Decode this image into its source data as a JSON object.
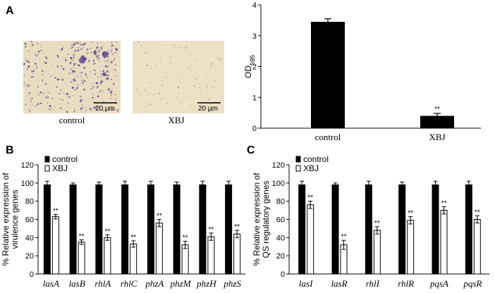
{
  "panel_letters": {
    "a": "A",
    "b": "B",
    "c": "C"
  },
  "micrographs": [
    {
      "label": "control",
      "scale": "20 μm",
      "bg": "#e9dcc0"
    },
    {
      "label": "XBJ",
      "scale": "20 μm",
      "bg": "#ece0c6"
    }
  ],
  "colors": {
    "control": "#000000",
    "xbj": "#ffffff",
    "stain": "#5b3f8c"
  },
  "chart_data": [
    {
      "type": "bar",
      "panel": "A",
      "categories": [
        "control",
        "XBJ"
      ],
      "values": [
        3.45,
        0.4
      ],
      "errors": [
        0.1,
        0.08
      ],
      "significance": [
        "",
        "**"
      ],
      "ylabel": "OD",
      "ylabel_sub": "595",
      "ylim": [
        0,
        4
      ],
      "yticks": [
        0,
        1,
        2,
        3,
        4
      ]
    },
    {
      "type": "bar",
      "panel": "B",
      "categories": [
        "lasA",
        "lasB",
        "rhlA",
        "rhlC",
        "phzA",
        "phzM",
        "phzH",
        "phzS"
      ],
      "series": [
        {
          "name": "control",
          "values": [
            98,
            98,
            98,
            98,
            98,
            98,
            98,
            98
          ],
          "errors": [
            4,
            2,
            3,
            4,
            4,
            3,
            4,
            4
          ]
        },
        {
          "name": "XBJ",
          "values": [
            63,
            35,
            40,
            33,
            56,
            32,
            41,
            44
          ],
          "errors": [
            2.5,
            2.5,
            3,
            3.5,
            4,
            4,
            4,
            4
          ]
        }
      ],
      "significance": [
        "**",
        "**",
        "**",
        "**",
        "**",
        "**",
        "**",
        "**"
      ],
      "ylabel_lines": [
        "% Relative expression of",
        "virulence genes"
      ],
      "ylim": [
        0,
        120
      ],
      "yticks": [
        0,
        20,
        40,
        60,
        80,
        100,
        120
      ],
      "legend": "top-left"
    },
    {
      "type": "bar",
      "panel": "C",
      "categories": [
        "lasI",
        "lasR",
        "rhlI",
        "rhlR",
        "pqsA",
        "pqsR"
      ],
      "series": [
        {
          "name": "control",
          "values": [
            98,
            98,
            98,
            98,
            98,
            98
          ],
          "errors": [
            4,
            2,
            4,
            3,
            4,
            4
          ]
        },
        {
          "name": "XBJ",
          "values": [
            76,
            32,
            48,
            59,
            70,
            60
          ],
          "errors": [
            4,
            5,
            4,
            4,
            4,
            4
          ]
        }
      ],
      "significance": [
        "**",
        "**",
        "**",
        "**",
        "**",
        "**"
      ],
      "ylabel_lines": [
        "% Relative expression of",
        "QS regulatory genes"
      ],
      "ylim": [
        0,
        120
      ],
      "yticks": [
        0,
        20,
        40,
        60,
        80,
        100,
        120
      ],
      "legend": "top-left"
    }
  ]
}
